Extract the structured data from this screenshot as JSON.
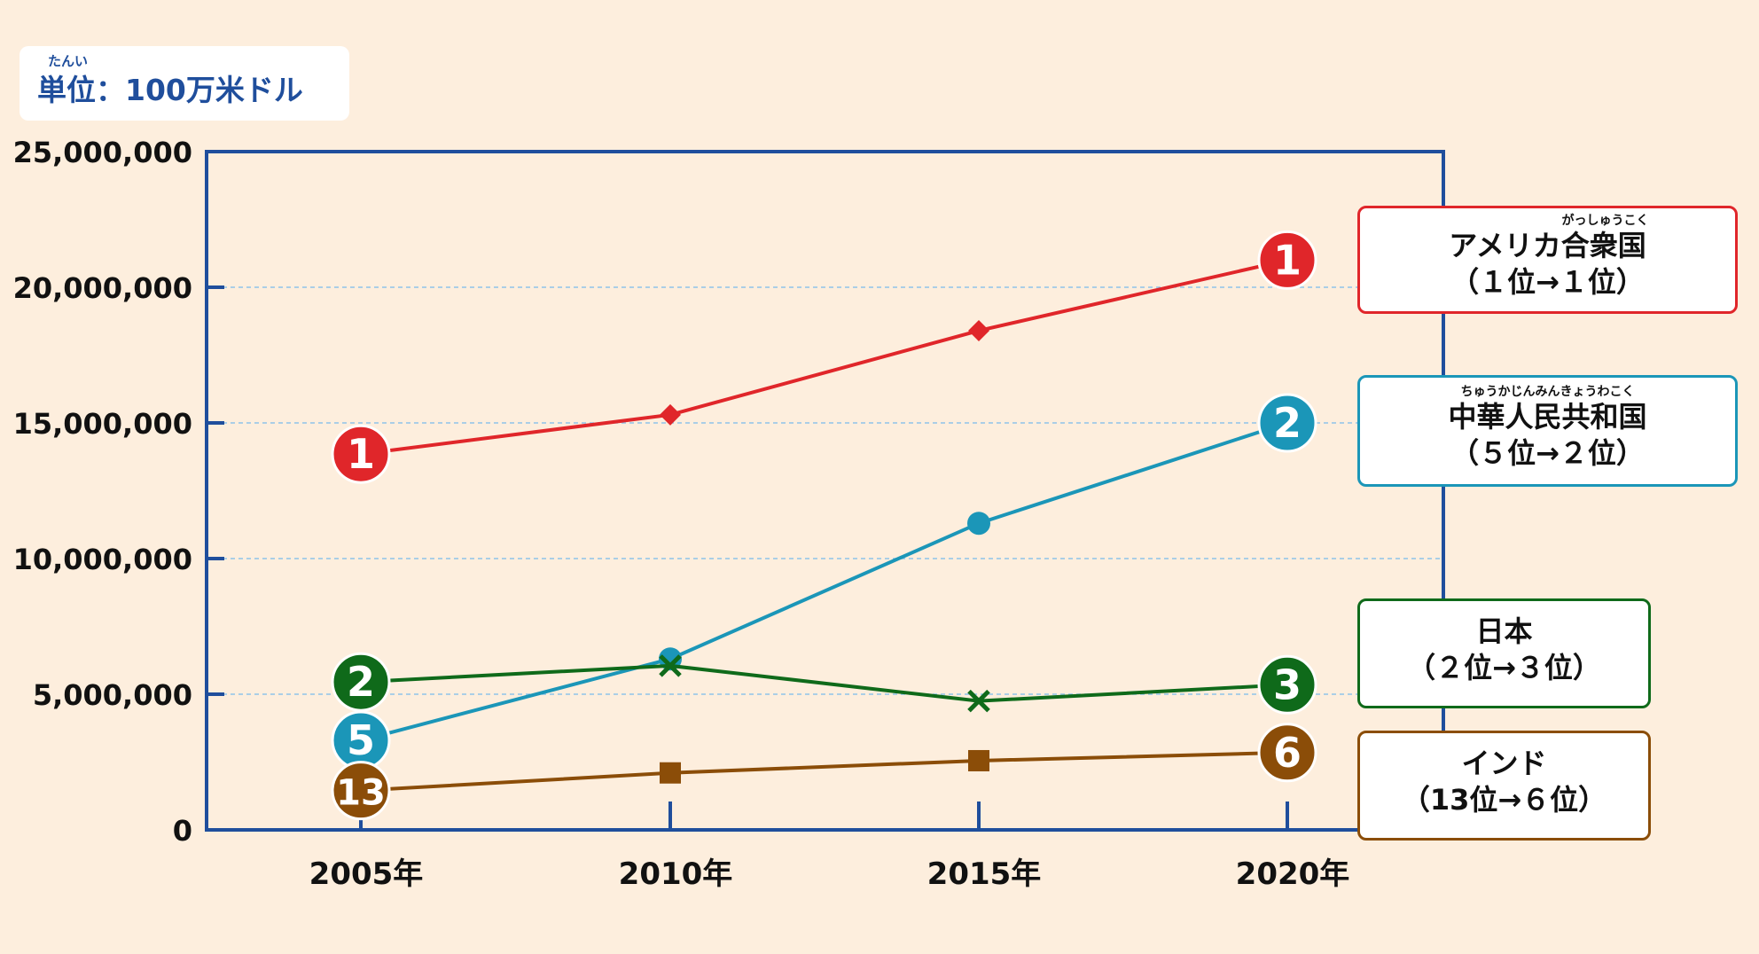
{
  "unit": {
    "ruby": "たんい",
    "label": "単位：100万米ドル"
  },
  "chart_data": {
    "type": "line",
    "x": [
      "2005年",
      "2010年",
      "2015年",
      "2020年"
    ],
    "yticks": [
      "0",
      "5,000,000",
      "10,000,000",
      "15,000,000",
      "20,000,000",
      "25,000,000"
    ],
    "ylim": [
      0,
      25000000
    ],
    "grid": "dashed horizontal",
    "series": [
      {
        "name": "アメリカ合衆国",
        "ruby": "がっしゅうこく",
        "rank_text": "（１位→１位）",
        "color": "#e0262a",
        "marker": "diamond",
        "values": [
          13850000,
          15300000,
          18400000,
          21000000
        ],
        "start_rank": "1",
        "end_rank": "1"
      },
      {
        "name": "中華人民共和国",
        "ruby": "ちゅうかじんみんきょうわこく",
        "rank_text": "（５位→２位）",
        "color": "#1b96b8",
        "marker": "circle",
        "values": [
          3300000,
          6300000,
          11300000,
          15000000
        ],
        "start_rank": "5",
        "end_rank": "2"
      },
      {
        "name": "日本",
        "ruby": "",
        "rank_text": "（２位→３位）",
        "color": "#0f6a1a",
        "marker": "x",
        "values": [
          5450000,
          6050000,
          4750000,
          5350000
        ],
        "start_rank": "2",
        "end_rank": "3"
      },
      {
        "name": "インド",
        "ruby": "",
        "rank_text": "（13位→６位）",
        "color": "#8b4d08",
        "marker": "square",
        "values": [
          1450000,
          2100000,
          2550000,
          2850000
        ],
        "start_rank": "13",
        "end_rank": "6"
      }
    ]
  }
}
